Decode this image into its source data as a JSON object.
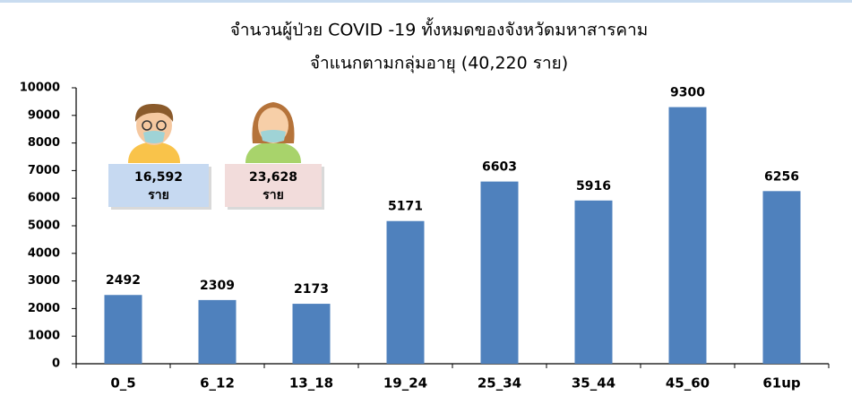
{
  "chart_data": {
    "type": "bar",
    "title": "จำนวนผู้ป่วย COVID -19 ทั้งหมดของจังหวัดมหาสารคาม",
    "subtitle": "จำแนกตามกลุ่มอายุ (40,220 ราย)",
    "categories": [
      "0_5",
      "6_12",
      "13_18",
      "19_24",
      "25_34",
      "35_44",
      "45_60",
      "61up"
    ],
    "values": [
      2492,
      2309,
      2173,
      5171,
      6603,
      5916,
      9300,
      6256
    ],
    "color": "#4f81bd",
    "ylim": [
      0,
      10000
    ],
    "yticks": [
      0,
      1000,
      2000,
      3000,
      4000,
      5000,
      6000,
      7000,
      8000,
      9000,
      10000
    ],
    "grid": false,
    "annotations": [
      {
        "label": "16,592",
        "sublabel": "ราย",
        "color": "#c6d9f1"
      },
      {
        "label": "23,628",
        "sublabel": "ราย",
        "color": "#f2dcdb"
      }
    ]
  }
}
